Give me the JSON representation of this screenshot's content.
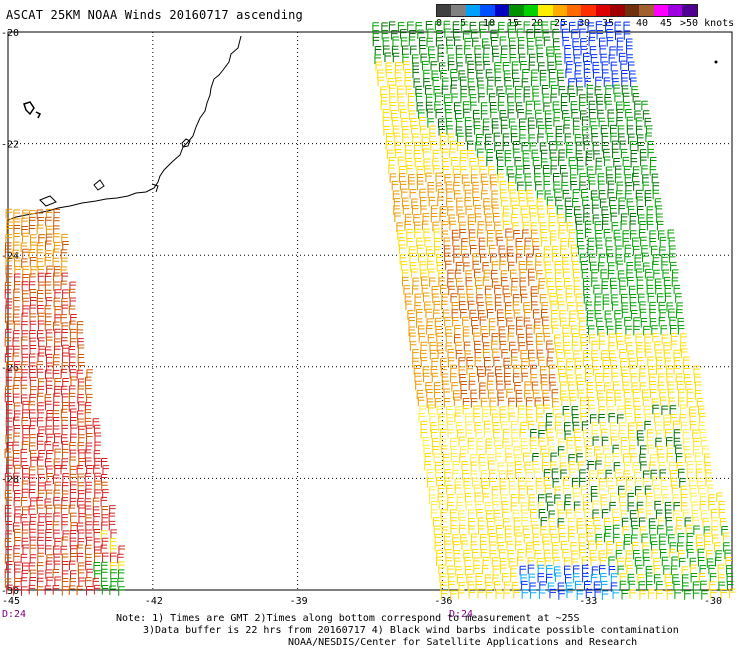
{
  "title": "ASCAT 25KM NOAA Winds 20160717 ascending",
  "color_scale": {
    "colors": [
      "#404040",
      "#808080",
      "#00a0ff",
      "#0050ff",
      "#0000c0",
      "#009000",
      "#00d000",
      "#ffee00",
      "#ffaa00",
      "#ff6a00",
      "#ff3000",
      "#dd0000",
      "#a00000",
      "#703010",
      "#a06030",
      "#ff00ff",
      "#a000e0",
      "#500090"
    ],
    "labels": [
      "0",
      "5",
      "10",
      "15",
      "20",
      "25",
      "30",
      "35",
      "40",
      "45",
      ">50 knots"
    ]
  },
  "map": {
    "lat_labels": [
      "-20",
      "-22",
      "-24",
      "-26",
      "-28",
      "-30"
    ],
    "lon_labels": [
      "-45",
      "-42",
      "-39",
      "-36",
      "-33",
      "-30"
    ],
    "time_labels": [
      "D:24",
      "D:24"
    ],
    "land_color": "#000000",
    "barb_colors": {
      "green": "#00a000",
      "dark_green": "#007000",
      "yellow": "#ffdd00",
      "light_yellow": "#ffee44",
      "orange": "#ee9900",
      "dark_orange": "#d05800",
      "red": "#d82020",
      "blue": "#0030ff",
      "light_blue": "#00aaff"
    }
  },
  "notes": {
    "line1": "Note: 1) Times are GMT 2)Times along bottom correspond to measurement at ~25S",
    "line2": "3)Data buffer is 22 hrs from 20160717 4) Black wind barbs indicate possible contamination",
    "line3": "NOAA/NESDIS/Center for Satellite Applications and Research"
  }
}
